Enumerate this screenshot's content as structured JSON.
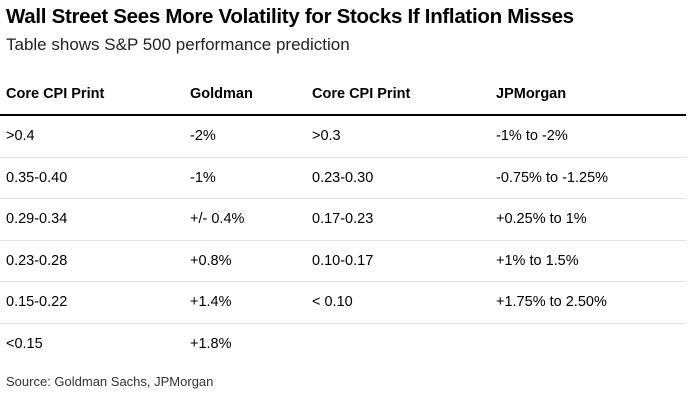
{
  "header": {
    "title": "Wall Street Sees More Volatility for Stocks If Inflation Misses",
    "subtitle": "Table shows S&P 500 performance prediction"
  },
  "chart_data": {
    "type": "table",
    "title": "Wall Street Sees More Volatility for Stocks If Inflation Misses",
    "subtitle": "Table shows S&P 500 performance prediction",
    "columns": [
      "Core CPI Print",
      "Goldman",
      "Core CPI Print",
      "JPMorgan"
    ],
    "rows": [
      [
        ">0.4",
        "-2%",
        ">0.3",
        "-1% to -2%"
      ],
      [
        "0.35-0.40",
        "-1%",
        "0.23-0.30",
        "-0.75% to -1.25%"
      ],
      [
        "0.29-0.34",
        "+/- 0.4%",
        "0.17-0.23",
        "+0.25% to 1%"
      ],
      [
        "0.23-0.28",
        "+0.8%",
        "0.10-0.17",
        "+1% to 1.5%"
      ],
      [
        "0.15-0.22",
        "+1.4%",
        "< 0.10",
        "+1.75% to 2.50%"
      ],
      [
        "<0.15",
        "+1.8%",
        "",
        ""
      ]
    ],
    "source": "Source: Goldman Sachs, JPMorgan"
  }
}
